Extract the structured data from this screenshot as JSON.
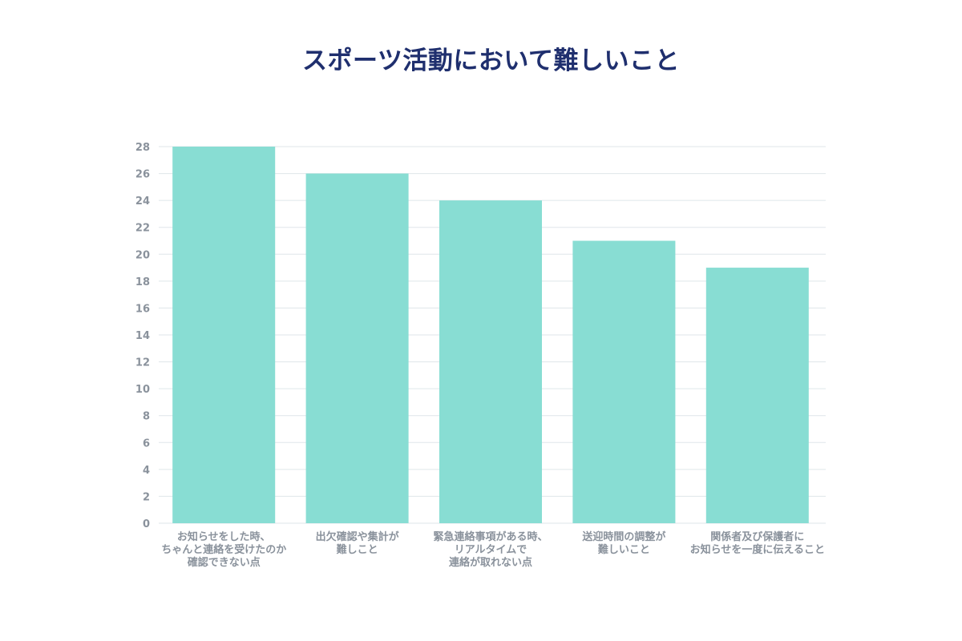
{
  "chart_data": {
    "type": "bar",
    "title": "スポーツ活動において難しいこと",
    "categories": [
      "お知らせをした時、\nちゃんと連絡を受けたのか\n確認できない点",
      "出欠確認や集計が\n難しこと",
      "緊急連絡事項がある時、\nリアルタイムで\n連絡が取れない点",
      "送迎時間の調整が\n難しいこと",
      "関係者及び保護者に\nお知らせを一度に伝えること"
    ],
    "values": [
      28,
      26,
      24,
      21,
      19
    ],
    "ylim": [
      0,
      28
    ],
    "yticks": [
      0,
      2,
      4,
      6,
      8,
      10,
      12,
      14,
      16,
      18,
      20,
      22,
      24,
      26,
      28
    ],
    "xlabel": "",
    "ylabel": "",
    "grid": true,
    "legend": "none",
    "colors": {
      "bar": "#88ddd3",
      "grid": "#dfe6ea",
      "title": "#1f2f6e",
      "tick": "#8a929c"
    }
  }
}
